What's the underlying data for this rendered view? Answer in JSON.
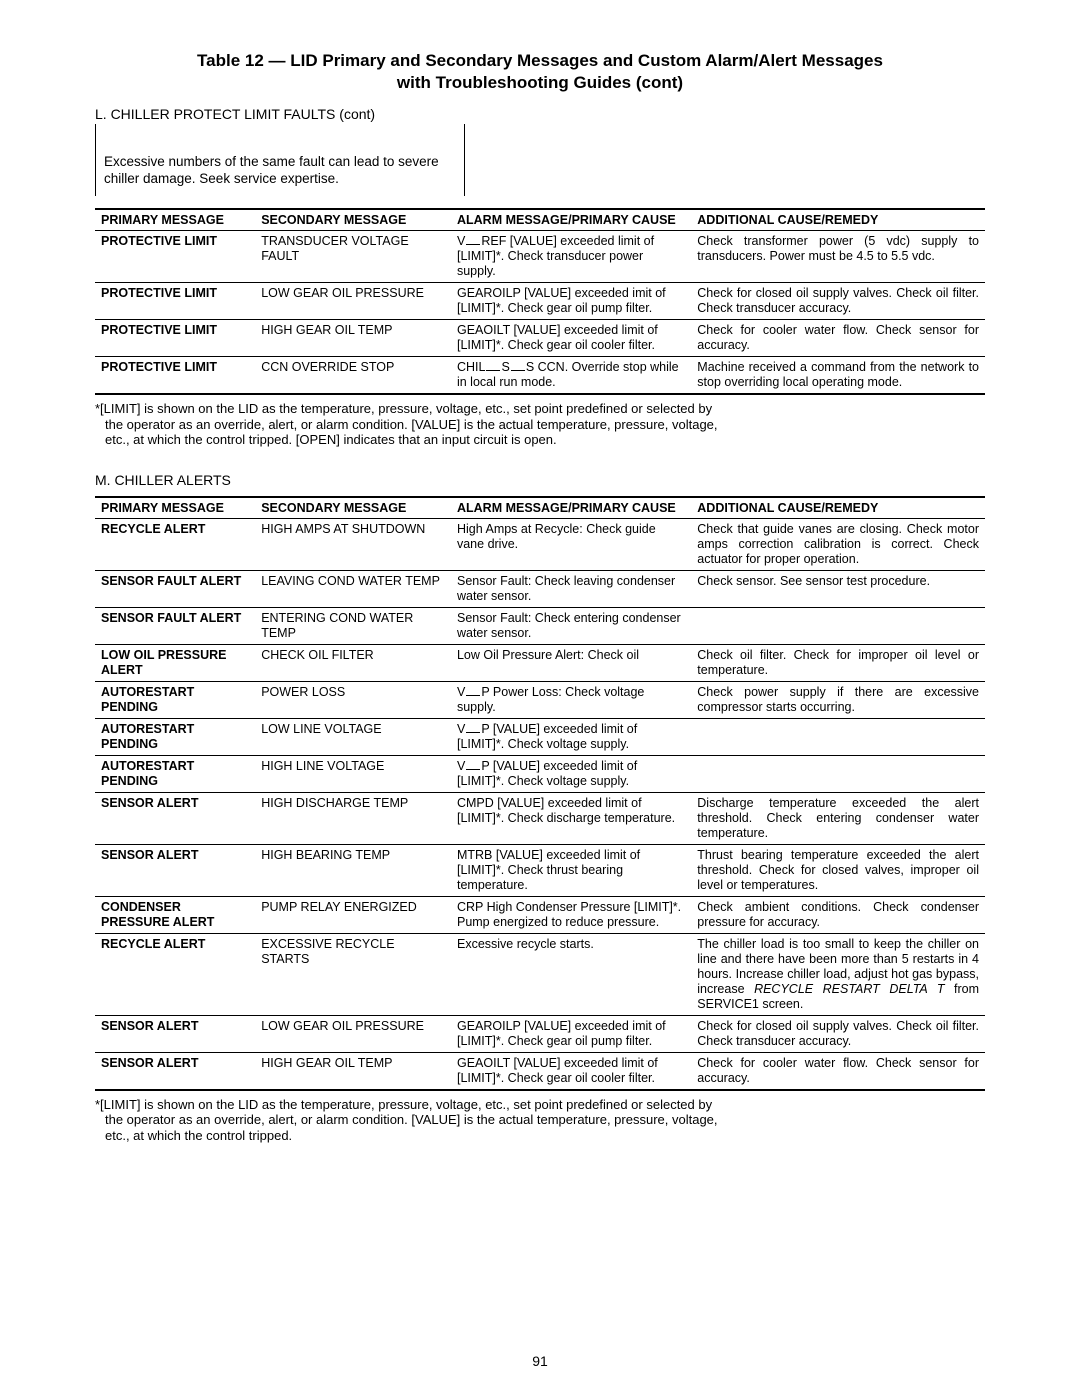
{
  "page": {
    "title_line1": "Table 12 — LID Primary and Secondary Messages and Custom Alarm/Alert Messages",
    "title_line2": "with Troubleshooting Guides (cont)",
    "page_number": "91"
  },
  "section_L": {
    "label": "L.  CHILLER PROTECT LIMIT FAULTS (cont)",
    "note_box": "Excessive numbers of the same fault can lead to severe chiller damage. Seek service expertise.",
    "headers": {
      "primary": "PRIMARY MESSAGE",
      "secondary": "SECONDARY MESSAGE",
      "alarm": "ALARM MESSAGE/PRIMARY CAUSE",
      "remedy": "ADDITIONAL CAUSE/REMEDY"
    },
    "rows": [
      {
        "primary": "PROTECTIVE LIMIT",
        "secondary": "TRANSDUCER VOLTAGE FAULT",
        "alarm_pre": "V",
        "alarm_post": "REF [VALUE] exceeded limit of [LIMIT]*. Check transducer power supply.",
        "remedy": "Check transformer power (5 vdc) supply to transducers. Power must be 4.5 to 5.5 vdc."
      },
      {
        "primary": "PROTECTIVE LIMIT",
        "secondary": "LOW GEAR OIL PRESSURE",
        "alarm": "GEAROILP [VALUE] exceeded imit of [LIMIT]*. Check gear oil pump filter.",
        "remedy": "Check for closed oil supply valves. Check oil filter. Check transducer accuracy."
      },
      {
        "primary": "PROTECTIVE LIMIT",
        "secondary": "HIGH GEAR OIL TEMP",
        "alarm": "GEAOILT [VALUE] exceeded limit of [LIMIT]*. Check gear oil cooler filter.",
        "remedy": "Check for cooler water flow. Check sensor for accuracy."
      },
      {
        "primary": "PROTECTIVE LIMIT",
        "secondary": "CCN OVERRIDE STOP",
        "alarm_ccn_pre": "CHIL",
        "alarm_ccn_mid": "S",
        "alarm_ccn_post": "S CCN. Override stop while in local run mode.",
        "remedy": "Machine received a command from the network to stop overriding local operating mode."
      }
    ],
    "footnote_line1": "*[LIMIT] is shown on the LID as the temperature, pressure, voltage, etc., set point predefined or selected by",
    "footnote_line2": "the operator as an override, alert, or alarm condition. [VALUE] is the actual temperature, pressure, voltage,",
    "footnote_line3": "etc., at which the control tripped. [OPEN] indicates that an input circuit is open."
  },
  "section_M": {
    "label": "M.  CHILLER ALERTS",
    "headers": {
      "primary": "PRIMARY MESSAGE",
      "secondary": "SECONDARY MESSAGE",
      "alarm": "ALARM MESSAGE/PRIMARY CAUSE",
      "remedy": "ADDITIONAL CAUSE/REMEDY"
    },
    "rows": [
      {
        "primary": "RECYCLE ALERT",
        "secondary": "HIGH AMPS AT SHUTDOWN",
        "alarm": "High Amps at Recycle: Check guide vane drive.",
        "remedy": "Check that guide vanes are closing. Check motor amps correction calibration is correct. Check actuator for proper operation."
      },
      {
        "primary": "SENSOR FAULT ALERT",
        "secondary": "LEAVING COND WATER TEMP",
        "alarm": "Sensor Fault: Check leaving condenser water sensor.",
        "remedy": "Check sensor. See sensor test procedure."
      },
      {
        "primary": "SENSOR FAULT ALERT",
        "secondary": "ENTERING COND WATER TEMP",
        "alarm": "Sensor Fault: Check entering condenser water sensor.",
        "remedy": ""
      },
      {
        "primary": "LOW OIL PRESSURE ALERT",
        "secondary": "CHECK OIL FILTER",
        "alarm": "Low Oil Pressure Alert: Check oil",
        "remedy": "Check oil filter. Check for improper oil level or temperature."
      },
      {
        "primary": "AUTORESTART PENDING",
        "secondary": "POWER LOSS",
        "alarm_pre": "V",
        "alarm_post": "P Power Loss: Check voltage supply.",
        "remedy": "Check power supply if there are excessive compressor starts occurring."
      },
      {
        "primary": "AUTORESTART PENDING",
        "secondary": "LOW LINE VOLTAGE",
        "alarm_pre": "V",
        "alarm_post": "P [VALUE] exceeded limit of [LIMIT]*. Check voltage supply.",
        "remedy": ""
      },
      {
        "primary": "AUTORESTART PENDING",
        "secondary": "HIGH LINE VOLTAGE",
        "alarm_pre": "V",
        "alarm_post": "P [VALUE] exceeded limit of [LIMIT]*. Check voltage supply.",
        "remedy": ""
      },
      {
        "primary": "SENSOR ALERT",
        "secondary": "HIGH DISCHARGE TEMP",
        "alarm": "CMPD [VALUE] exceeded limit of [LIMIT]*. Check discharge temperature.",
        "remedy": "Discharge temperature exceeded the alert threshold. Check entering condenser water temperature."
      },
      {
        "primary": "SENSOR ALERT",
        "secondary": "HIGH BEARING TEMP",
        "alarm": "MTRB [VALUE] exceeded limit of [LIMIT]*. Check thrust bearing temperature.",
        "remedy": "Thrust bearing temperature exceeded the alert threshold. Check for closed valves, improper oil level or temperatures."
      },
      {
        "primary": "CONDENSER PRESSURE ALERT",
        "secondary": "PUMP RELAY ENERGIZED",
        "alarm": "CRP High Condenser Pressure [LIMIT]*. Pump energized to reduce pressure.",
        "remedy": "Check ambient conditions. Check condenser pressure for accuracy."
      },
      {
        "primary": "RECYCLE ALERT",
        "secondary": "EXCESSIVE RECYCLE STARTS",
        "alarm": "Excessive recycle starts.",
        "remedy_rich": true,
        "remedy_pre": "The chiller load is too small to keep the chiller on line and there have been more than 5 restarts in 4 hours. Increase chiller load, adjust hot gas bypass, increase ",
        "remedy_italic": "RECYCLE RESTART DELTA T",
        "remedy_post": " from SERVICE1 screen."
      },
      {
        "primary": "SENSOR ALERT",
        "secondary": "LOW GEAR OIL PRESSURE",
        "alarm": "GEAROILP [VALUE] exceeded imit of [LIMIT]*. Check gear oil pump filter.",
        "remedy": "Check for closed oil supply valves. Check oil filter. Check transducer accuracy."
      },
      {
        "primary": "SENSOR ALERT",
        "secondary": "HIGH GEAR OIL TEMP",
        "alarm": "GEAOILT [VALUE] exceeded limit of [LIMIT]*. Check gear oil cooler filter.",
        "remedy": "Check for cooler water flow. Check sensor for accuracy."
      }
    ],
    "footnote_line1": "*[LIMIT] is shown on the LID as the temperature, pressure, voltage, etc., set point predefined or selected by",
    "footnote_line2": "the operator as an override, alert, or alarm condition. [VALUE] is the actual temperature, pressure, voltage,",
    "footnote_line3": "etc., at which the control tripped."
  }
}
